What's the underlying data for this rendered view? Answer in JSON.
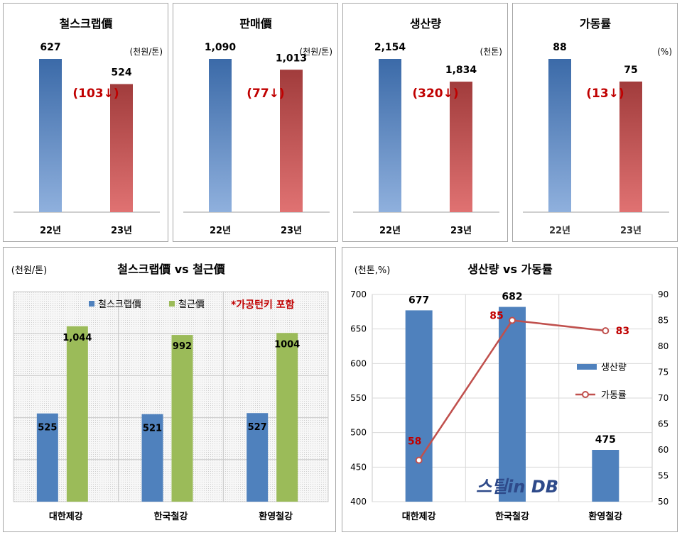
{
  "chart_data": [
    {
      "type": "bar",
      "title": "철스크랩價",
      "unit": "(천원/톤)",
      "categories": [
        "22년",
        "23년"
      ],
      "values": [
        627,
        524
      ],
      "value_labels": [
        "627",
        "524"
      ],
      "change_label": "(103↓)",
      "colors": [
        "#3b6aa8",
        "#a13c3c"
      ]
    },
    {
      "type": "bar",
      "title": "판매價",
      "unit": "(천원/톤)",
      "categories": [
        "22년",
        "23년"
      ],
      "values": [
        1090,
        1013
      ],
      "value_labels": [
        "1,090",
        "1,013"
      ],
      "change_label": "(77↓)",
      "colors": [
        "#3b6aa8",
        "#a13c3c"
      ]
    },
    {
      "type": "bar",
      "title": "생산량",
      "unit": "(천톤)",
      "categories": [
        "22년",
        "23년"
      ],
      "values": [
        2154,
        1834
      ],
      "value_labels": [
        "2,154",
        "1,834"
      ],
      "change_label": "(320↓)",
      "colors": [
        "#3b6aa8",
        "#a13c3c"
      ]
    },
    {
      "type": "bar",
      "title": "가동률",
      "unit": "(%)",
      "categories": [
        "22년",
        "23년"
      ],
      "values": [
        88,
        75
      ],
      "value_labels": [
        "88",
        "75"
      ],
      "change_label": "(13↓)",
      "colors": [
        "#3b6aa8",
        "#a13c3c"
      ]
    },
    {
      "type": "bar",
      "title": "철스크랩價 vs 철근價",
      "unit": "(천원/톤)",
      "note": "*가공턴키 포함",
      "categories": [
        "대한제강",
        "한국철강",
        "환영철강"
      ],
      "series": [
        {
          "name": "철스크랩價",
          "values": [
            525,
            521,
            527
          ],
          "value_labels": [
            "525",
            "521",
            "527"
          ],
          "color": "#4f81bd"
        },
        {
          "name": "철근價",
          "values": [
            1044,
            992,
            1004
          ],
          "value_labels": [
            "1,044",
            "992",
            "1004"
          ],
          "color": "#9bbb59"
        }
      ],
      "ylim": [
        0,
        1250
      ],
      "grid": true,
      "legend": "top"
    },
    {
      "type": "bar",
      "title": "생산량 vs 가동률",
      "unit": "(천톤,%)",
      "categories": [
        "대한제강",
        "한국철강",
        "환영철강"
      ],
      "series": [
        {
          "name": "생산량",
          "kind": "bar",
          "axis": "left",
          "values": [
            677,
            682,
            475
          ],
          "value_labels": [
            "677",
            "682",
            "475"
          ],
          "color": "#4f81bd"
        },
        {
          "name": "가동률",
          "kind": "line",
          "axis": "right",
          "values": [
            58,
            85,
            83
          ],
          "value_labels": [
            "58",
            "85",
            "83"
          ],
          "color": "#c0504d"
        }
      ],
      "ylim_left": [
        400,
        700
      ],
      "yticks_left": [
        "400",
        "450",
        "500",
        "550",
        "600",
        "650",
        "700"
      ],
      "ylim_right": [
        50,
        90
      ],
      "yticks_right": [
        "50",
        "55",
        "60",
        "65",
        "70",
        "75",
        "80",
        "85",
        "90"
      ],
      "grid": true,
      "legend": "right"
    }
  ],
  "watermark": "스틸in DB"
}
